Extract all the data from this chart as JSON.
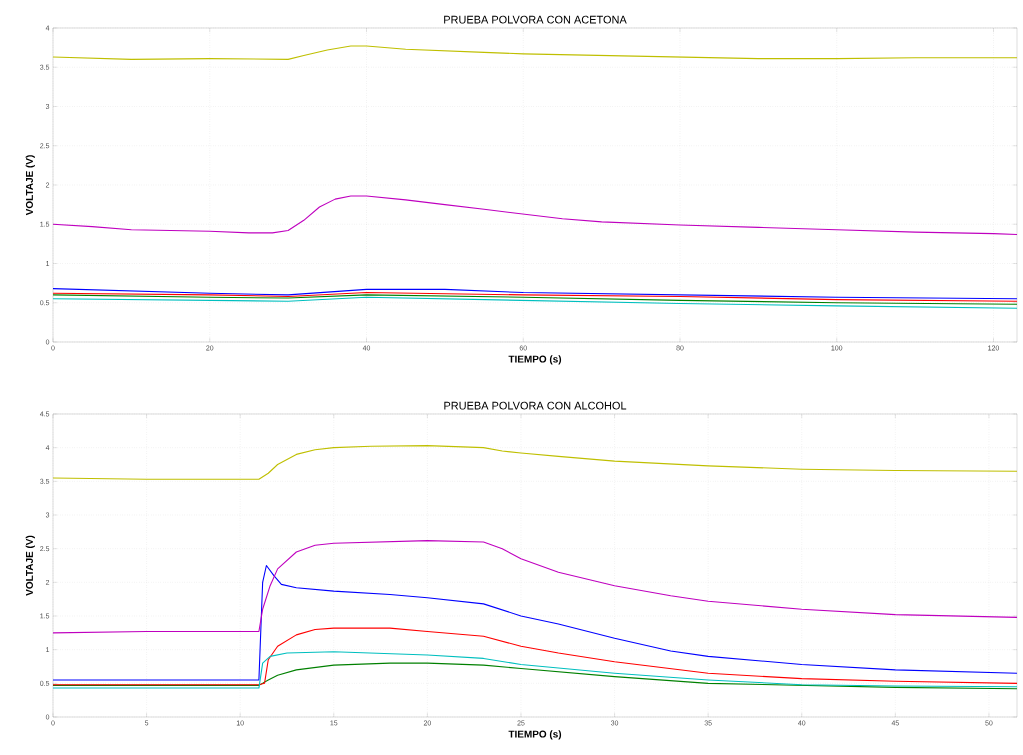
{
  "chart_data": [
    {
      "type": "line",
      "title": "PRUEBA POLVORA CON ACETONA",
      "xlabel": "TIEMPO (s)",
      "ylabel": "VOLTAJE (V)",
      "xlim": [
        0,
        123
      ],
      "ylim": [
        0,
        4
      ],
      "xticks": [
        0,
        20,
        40,
        60,
        80,
        100,
        120
      ],
      "yticks": [
        0,
        0.5,
        1,
        1.5,
        2,
        2.5,
        3,
        3.5,
        4
      ],
      "grid": true,
      "series": [
        {
          "color": "#0000ff",
          "x": [
            0,
            10,
            20,
            30,
            40,
            50,
            60,
            80,
            100,
            123
          ],
          "values": [
            0.68,
            0.65,
            0.62,
            0.6,
            0.67,
            0.67,
            0.63,
            0.6,
            0.57,
            0.55
          ]
        },
        {
          "color": "#008000",
          "x": [
            0,
            20,
            30,
            40,
            60,
            80,
            100,
            123
          ],
          "values": [
            0.6,
            0.57,
            0.56,
            0.6,
            0.57,
            0.53,
            0.5,
            0.48
          ]
        },
        {
          "color": "#ff0000",
          "x": [
            0,
            20,
            30,
            40,
            60,
            80,
            100,
            123
          ],
          "values": [
            0.62,
            0.6,
            0.58,
            0.63,
            0.6,
            0.58,
            0.54,
            0.52
          ]
        },
        {
          "color": "#00bfbf",
          "x": [
            0,
            20,
            30,
            40,
            60,
            80,
            100,
            123
          ],
          "values": [
            0.55,
            0.53,
            0.52,
            0.57,
            0.53,
            0.49,
            0.46,
            0.43
          ]
        },
        {
          "color": "#bf00bf",
          "x": [
            0,
            5,
            10,
            20,
            25,
            28,
            30,
            32,
            34,
            36,
            38,
            40,
            45,
            50,
            55,
            60,
            65,
            70,
            80,
            90,
            100,
            110,
            120,
            123
          ],
          "values": [
            1.5,
            1.47,
            1.43,
            1.41,
            1.39,
            1.39,
            1.42,
            1.55,
            1.72,
            1.82,
            1.86,
            1.86,
            1.81,
            1.75,
            1.69,
            1.63,
            1.57,
            1.53,
            1.49,
            1.46,
            1.43,
            1.4,
            1.38,
            1.37
          ]
        },
        {
          "color": "#bfbf00",
          "x": [
            0,
            10,
            20,
            30,
            32,
            35,
            38,
            40,
            45,
            50,
            55,
            60,
            70,
            80,
            90,
            100,
            110,
            123
          ],
          "values": [
            3.63,
            3.6,
            3.61,
            3.6,
            3.65,
            3.72,
            3.77,
            3.77,
            3.73,
            3.71,
            3.69,
            3.67,
            3.65,
            3.63,
            3.61,
            3.61,
            3.62,
            3.62
          ]
        }
      ]
    },
    {
      "type": "line",
      "title": "PRUEBA POLVORA CON ALCOHOL",
      "xlabel": "TIEMPO (s)",
      "ylabel": "VOLTAJE (V)",
      "xlim": [
        0,
        51.5
      ],
      "ylim": [
        0,
        4.5
      ],
      "xticks": [
        0,
        5,
        10,
        15,
        20,
        25,
        30,
        35,
        40,
        45,
        50
      ],
      "yticks": [
        0,
        0.5,
        1,
        1.5,
        2,
        2.5,
        3,
        3.5,
        4,
        4.5
      ],
      "grid": true,
      "series": [
        {
          "color": "#0000ff",
          "x": [
            0,
            5,
            11,
            11.2,
            11.4,
            11.8,
            12.2,
            13,
            15,
            18,
            20,
            23,
            25,
            27,
            30,
            33,
            35,
            40,
            45,
            51.5
          ],
          "values": [
            0.55,
            0.55,
            0.55,
            2.0,
            2.25,
            2.1,
            1.97,
            1.92,
            1.87,
            1.82,
            1.77,
            1.68,
            1.5,
            1.38,
            1.17,
            0.98,
            0.9,
            0.78,
            0.7,
            0.65
          ]
        },
        {
          "color": "#008000",
          "x": [
            0,
            11,
            11.5,
            12,
            13,
            15,
            18,
            20,
            23,
            25,
            30,
            35,
            40,
            45,
            51.5
          ],
          "values": [
            0.47,
            0.47,
            0.55,
            0.62,
            0.7,
            0.77,
            0.8,
            0.8,
            0.77,
            0.72,
            0.6,
            0.5,
            0.47,
            0.44,
            0.42
          ]
        },
        {
          "color": "#ff0000",
          "x": [
            0,
            11,
            11.3,
            11.5,
            12,
            13,
            14,
            15,
            18,
            20,
            23,
            25,
            27,
            30,
            35,
            40,
            45,
            51.5
          ],
          "values": [
            0.48,
            0.48,
            0.5,
            0.85,
            1.05,
            1.22,
            1.3,
            1.32,
            1.32,
            1.27,
            1.2,
            1.05,
            0.95,
            0.82,
            0.65,
            0.57,
            0.53,
            0.5
          ]
        },
        {
          "color": "#00bfbf",
          "x": [
            0,
            11,
            11.2,
            11.6,
            12.5,
            15,
            20,
            23,
            25,
            30,
            35,
            40,
            45,
            51.5
          ],
          "values": [
            0.43,
            0.43,
            0.8,
            0.9,
            0.95,
            0.97,
            0.92,
            0.87,
            0.78,
            0.65,
            0.55,
            0.48,
            0.46,
            0.45
          ]
        },
        {
          "color": "#bf00bf",
          "x": [
            0,
            5,
            11,
            11.2,
            11.6,
            12,
            13,
            14,
            15,
            20,
            23,
            24,
            25,
            27,
            30,
            33,
            35,
            40,
            45,
            51.5
          ],
          "values": [
            1.25,
            1.27,
            1.27,
            1.6,
            1.95,
            2.2,
            2.45,
            2.55,
            2.58,
            2.62,
            2.6,
            2.5,
            2.35,
            2.15,
            1.95,
            1.8,
            1.72,
            1.6,
            1.52,
            1.48
          ]
        },
        {
          "color": "#bfbf00",
          "x": [
            0,
            5,
            10,
            11,
            11.5,
            12,
            13,
            14,
            15,
            17,
            20,
            23,
            24,
            25,
            27,
            30,
            35,
            40,
            45,
            51.5
          ],
          "values": [
            3.55,
            3.53,
            3.53,
            3.53,
            3.62,
            3.75,
            3.9,
            3.97,
            4.0,
            4.02,
            4.03,
            4.0,
            3.95,
            3.92,
            3.87,
            3.8,
            3.73,
            3.68,
            3.66,
            3.65
          ]
        }
      ]
    }
  ]
}
